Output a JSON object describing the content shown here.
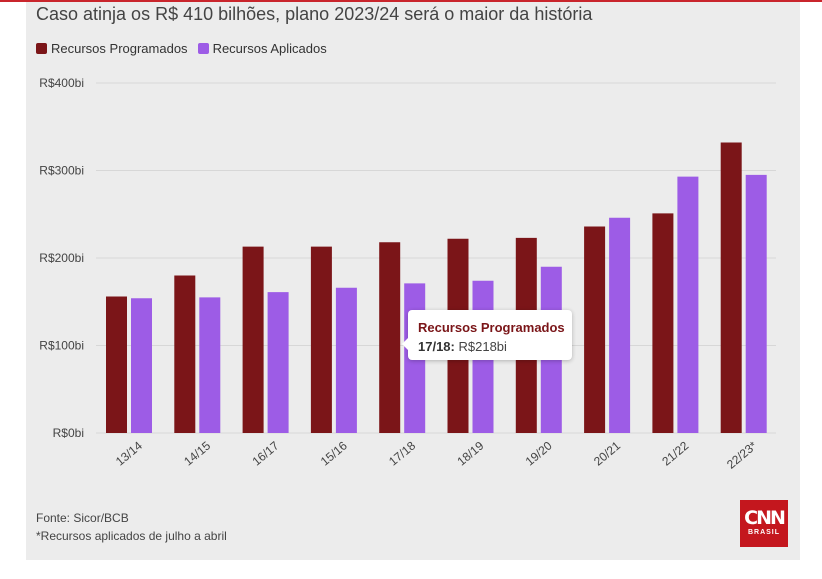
{
  "title": "Caso atinja os R$ 410 bilhões, plano 2023/24 será o maior da história",
  "colors": {
    "programados": "#7b1518",
    "aplicados": "#9d5ce6",
    "grid": "#d7d7d7"
  },
  "chart_data": {
    "type": "bar",
    "categories": [
      "13/14",
      "14/15",
      "16/17",
      "15/16",
      "17/18",
      "18/19",
      "19/20",
      "20/21",
      "21/22",
      "22/23*"
    ],
    "series": [
      {
        "name": "Recursos Programados",
        "values": [
          156,
          180,
          213,
          213,
          218,
          222,
          223,
          236,
          251,
          332
        ]
      },
      {
        "name": "Recursos Aplicados",
        "values": [
          154,
          155,
          161,
          166,
          171,
          174,
          190,
          246,
          293,
          295
        ]
      }
    ],
    "yticks": [
      "R$0bi",
      "R$100bi",
      "R$200bi",
      "R$300bi",
      "R$400bi"
    ],
    "ytick_values": [
      0,
      100,
      200,
      300,
      400
    ],
    "ylim": [
      0,
      400
    ],
    "grid": true,
    "legend": "top-left"
  },
  "tooltip": {
    "series": "Recursos Programados",
    "category": "17/18:",
    "value": "R$218bi"
  },
  "source": {
    "line1": "Fonte: Sicor/BCB",
    "line2": "*Recursos aplicados de julho a abril"
  },
  "logo": {
    "mark": "CNN",
    "sub": "BRASIL"
  }
}
